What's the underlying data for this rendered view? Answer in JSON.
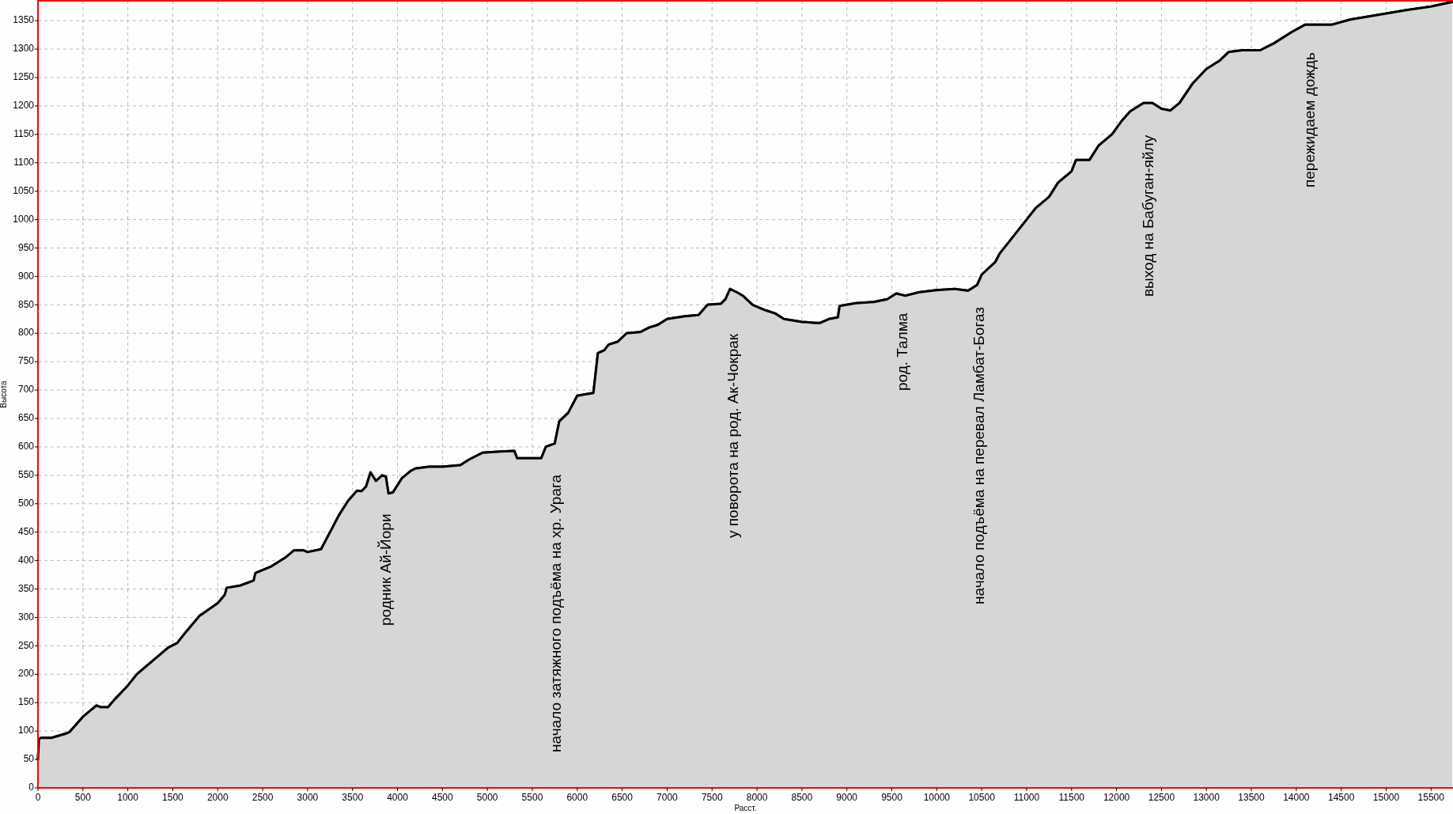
{
  "chart_data": {
    "type": "area",
    "xlabel": "Расст.",
    "ylabel": "Высота",
    "xlim": [
      0,
      15735
    ],
    "ylim": [
      0,
      1385
    ],
    "xticks": [
      0,
      500,
      1000,
      1500,
      2000,
      2500,
      3000,
      3500,
      4000,
      4500,
      5000,
      5500,
      6000,
      6500,
      7000,
      7500,
      8000,
      8500,
      9000,
      9500,
      10000,
      10500,
      11000,
      11500,
      12000,
      12500,
      13000,
      13500,
      14000,
      14500,
      15000,
      15500
    ],
    "yticks": [
      0,
      50,
      100,
      150,
      200,
      250,
      300,
      350,
      400,
      450,
      500,
      550,
      600,
      650,
      700,
      750,
      800,
      850,
      900,
      950,
      1000,
      1050,
      1100,
      1150,
      1200,
      1250,
      1300,
      1350
    ],
    "grid": true,
    "line_style": "solid",
    "marker": "none",
    "x": [
      0,
      10,
      30,
      150,
      300,
      350,
      500,
      650,
      700,
      780,
      850,
      1000,
      1100,
      1250,
      1450,
      1550,
      1650,
      1800,
      2000,
      2080,
      2100,
      2250,
      2400,
      2420,
      2600,
      2750,
      2850,
      2950,
      3000,
      3150,
      3350,
      3450,
      3550,
      3600,
      3650,
      3700,
      3760,
      3830,
      3870,
      3900,
      3950,
      4050,
      4150,
      4200,
      4350,
      4500,
      4700,
      4800,
      4950,
      5150,
      5300,
      5330,
      5600,
      5650,
      5750,
      5800,
      5900,
      6000,
      6180,
      6230,
      6300,
      6350,
      6450,
      6550,
      6700,
      6800,
      6900,
      7000,
      7200,
      7350,
      7450,
      7600,
      7650,
      7700,
      7800,
      7850,
      7950,
      8100,
      8200,
      8300,
      8500,
      8650,
      8700,
      8800,
      8900,
      8920,
      9100,
      9300,
      9450,
      9550,
      9650,
      9800,
      10000,
      10200,
      10350,
      10450,
      10500,
      10650,
      10700,
      10800,
      11000,
      11100,
      11250,
      11350,
      11500,
      11550,
      11700,
      11800,
      11950,
      12050,
      12150,
      12300,
      12400,
      12500,
      12600,
      12700,
      12850,
      13000,
      13150,
      13250,
      13400,
      13600,
      13750,
      13950,
      14100,
      14400,
      14600,
      14900,
      15200,
      15500,
      15735
    ],
    "series": [
      {
        "color": "#000000",
        "values": [
          50,
          85,
          88,
          88,
          95,
          98,
          125,
          145,
          142,
          142,
          155,
          180,
          200,
          220,
          247,
          255,
          275,
          303,
          325,
          340,
          352,
          356,
          365,
          378,
          390,
          405,
          418,
          418,
          415,
          420,
          480,
          505,
          523,
          522,
          530,
          555,
          540,
          550,
          548,
          518,
          520,
          545,
          558,
          562,
          565,
          565,
          568,
          578,
          590,
          592,
          593,
          580,
          580,
          600,
          606,
          645,
          660,
          690,
          695,
          765,
          770,
          780,
          785,
          800,
          802,
          810,
          815,
          825,
          830,
          832,
          850,
          852,
          860,
          878,
          870,
          865,
          850,
          840,
          835,
          825,
          820,
          818,
          818,
          825,
          828,
          848,
          853,
          855,
          860,
          870,
          866,
          872,
          876,
          878,
          875,
          885,
          903,
          925,
          940,
          960,
          1000,
          1020,
          1040,
          1065,
          1085,
          1105,
          1105,
          1130,
          1150,
          1172,
          1190,
          1205,
          1205,
          1195,
          1192,
          1205,
          1240,
          1265,
          1280,
          1295,
          1298,
          1298,
          1310,
          1330,
          1343,
          1343,
          1352,
          1360,
          1368,
          1375,
          1383
        ]
      }
    ],
    "annotations": [
      "родник Ай-Йори",
      "начало затяжного подъёма на хр. Урага",
      "у поворота на род. Ак-Чокрак",
      "род. Талма",
      "начало подъёма на перевал Ламбат-Богаз",
      "выход на Бабуган-яйлу",
      "пережидаем дождь"
    ]
  }
}
